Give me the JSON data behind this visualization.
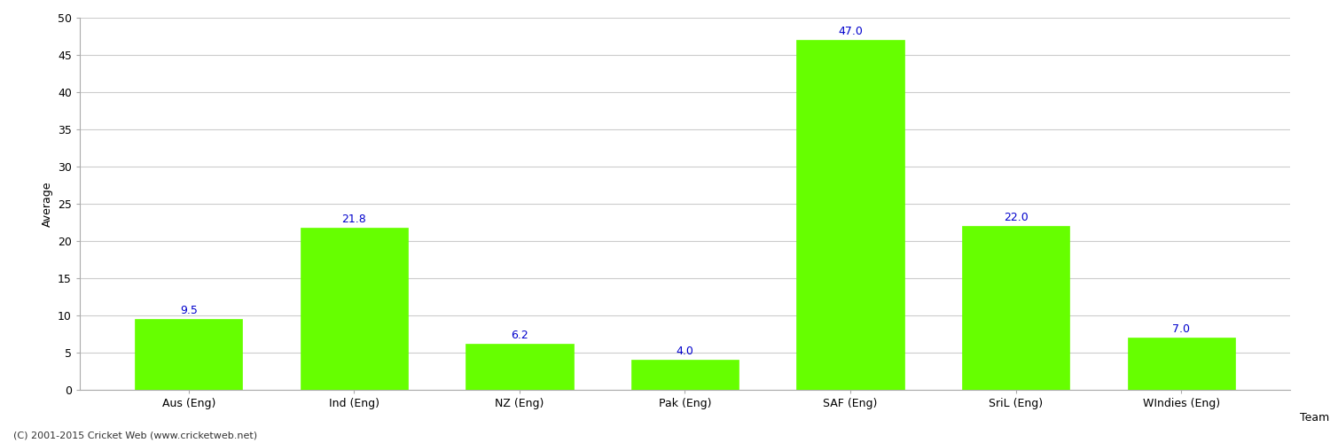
{
  "categories": [
    "Aus (Eng)",
    "Ind (Eng)",
    "NZ (Eng)",
    "Pak (Eng)",
    "SAF (Eng)",
    "SriL (Eng)",
    "WIndies (Eng)"
  ],
  "values": [
    9.5,
    21.8,
    6.2,
    4.0,
    47.0,
    22.0,
    7.0
  ],
  "bar_color": "#66ff00",
  "bar_edge_color": "#66ff00",
  "value_color": "#0000cc",
  "xlabel": "Team",
  "ylabel": "Average",
  "ylim": [
    0,
    50
  ],
  "yticks": [
    0,
    5,
    10,
    15,
    20,
    25,
    30,
    35,
    40,
    45,
    50
  ],
  "grid_color": "#cccccc",
  "bg_color": "#ffffff",
  "footer": "(C) 2001-2015 Cricket Web (www.cricketweb.net)",
  "value_fontsize": 9,
  "label_fontsize": 9,
  "axis_fontsize": 9,
  "bar_width": 0.65
}
